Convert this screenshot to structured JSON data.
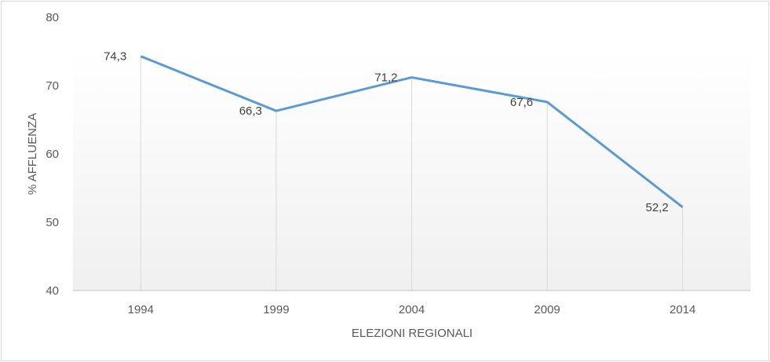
{
  "chart_data": {
    "type": "line",
    "categories": [
      "1994",
      "1999",
      "2004",
      "2009",
      "2014"
    ],
    "values": [
      74.3,
      66.3,
      71.2,
      67.6,
      52.2
    ],
    "data_labels": [
      "74,3",
      "66,3",
      "71,2",
      "67,6",
      "52,2"
    ],
    "xlabel": "ELEZIONI REGIONALI",
    "ylabel": "% AFFLUENZA",
    "ylim": [
      40,
      80
    ],
    "yticks": [
      "40",
      "50",
      "60",
      "70",
      "80"
    ],
    "drop_lines": true,
    "grid": false,
    "colors": {
      "line": "#5b9bd5",
      "drop_line": "#d9d9d9",
      "plot_fill_top": "#ffffff",
      "plot_fill_bottom": "#f0f0f0"
    }
  }
}
